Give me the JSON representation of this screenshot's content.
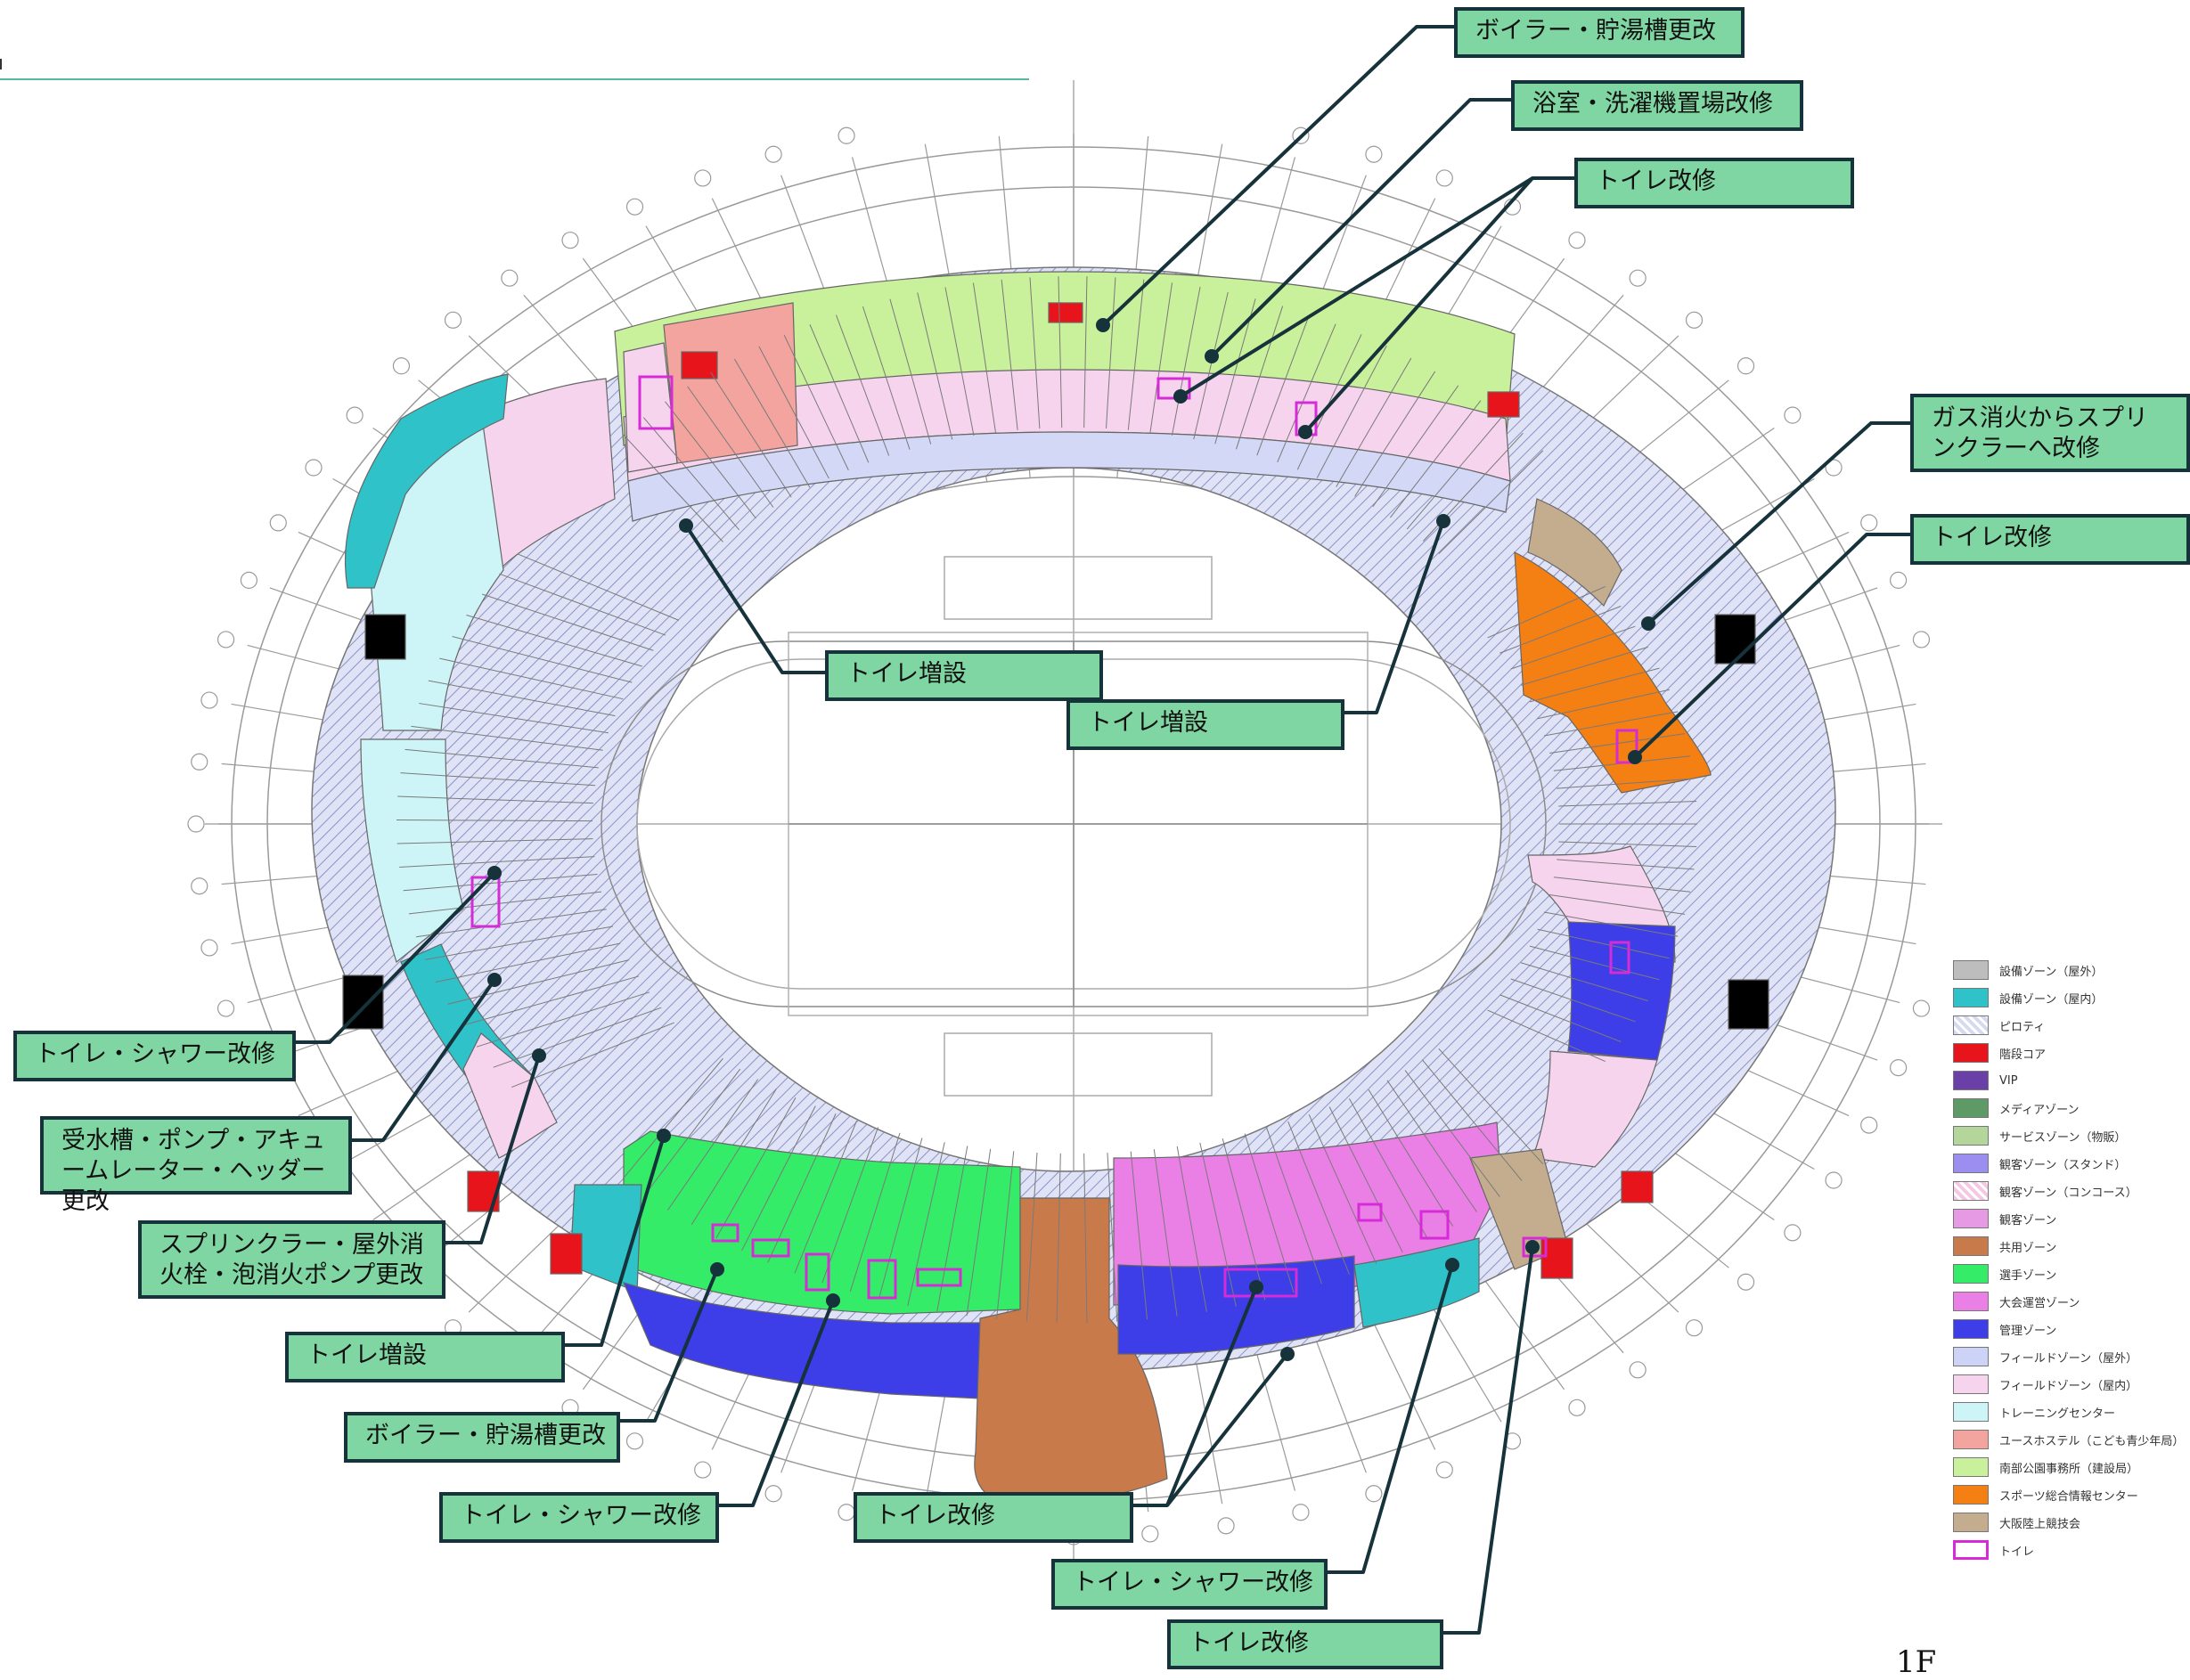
{
  "floor": "1F",
  "callouts": {
    "c01": "ボイラー・貯湯槽更改",
    "c02": "浴室・洗濯機置場改修",
    "c03": "トイレ改修",
    "c04": "ガス消火からスプリンクラーへ改修",
    "c05": "トイレ改修",
    "c06": "トイレ増設",
    "c07": "トイレ増設",
    "c08": "トイレ・シャワー改修",
    "c09": "受水槽・ポンプ・アキュームレーター・ヘッダー更改",
    "c10": "スプリンクラー・屋外消火栓・泡消火ポンプ更改",
    "c11": "トイレ増設",
    "c12": "ボイラー・貯湯槽更改",
    "c13": "トイレ・シャワー改修",
    "c14": "トイレ改修",
    "c15": "トイレ・シャワー改修",
    "c16": "トイレ改修"
  },
  "legend": [
    {
      "label": "設備ゾーン（屋外）",
      "color": "#bdbdbd"
    },
    {
      "label": "設備ゾーン（屋内）",
      "color": "#2fc2c9"
    },
    {
      "label": "ピロティ",
      "color": "#d5daf0",
      "hatch": true
    },
    {
      "label": "階段コア",
      "color": "#e8141c"
    },
    {
      "label": "VIP",
      "color": "#6a3fa8"
    },
    {
      "label": "メディアゾーン",
      "color": "#5e9a66"
    },
    {
      "label": "サービスゾーン（物販）",
      "color": "#b5d69a"
    },
    {
      "label": "観客ゾーン（スタンド）",
      "color": "#9b8ef0"
    },
    {
      "label": "観客ゾーン（コンコース）",
      "color": "#f4c8e4",
      "hatch": true
    },
    {
      "label": "観客ゾーン",
      "color": "#e59ae3"
    },
    {
      "label": "共用ゾーン",
      "color": "#c97a4a"
    },
    {
      "label": "選手ゾーン",
      "color": "#35ec68"
    },
    {
      "label": "大会運営ゾーン",
      "color": "#ea7fe5"
    },
    {
      "label": "管理ゾーン",
      "color": "#3d3ee8"
    },
    {
      "label": "フィールドゾーン（屋外）",
      "color": "#ccd3f6"
    },
    {
      "label": "フィールドゾーン（屋内）",
      "color": "#f7d4ee"
    },
    {
      "label": "トレーニングセンター",
      "color": "#cdf5f7"
    },
    {
      "label": "ユースホステル（こども青少年局）",
      "color": "#f3a49e"
    },
    {
      "label": "南部公園事務所（建設局）",
      "color": "#c9f09a"
    },
    {
      "label": "スポーツ総合情報センター",
      "color": "#f47f12"
    },
    {
      "label": "大阪陸上競技会",
      "color": "#c4ad8e"
    },
    {
      "label": "トイレ",
      "color": "#ffffff",
      "outline": "#d62bd6"
    }
  ]
}
